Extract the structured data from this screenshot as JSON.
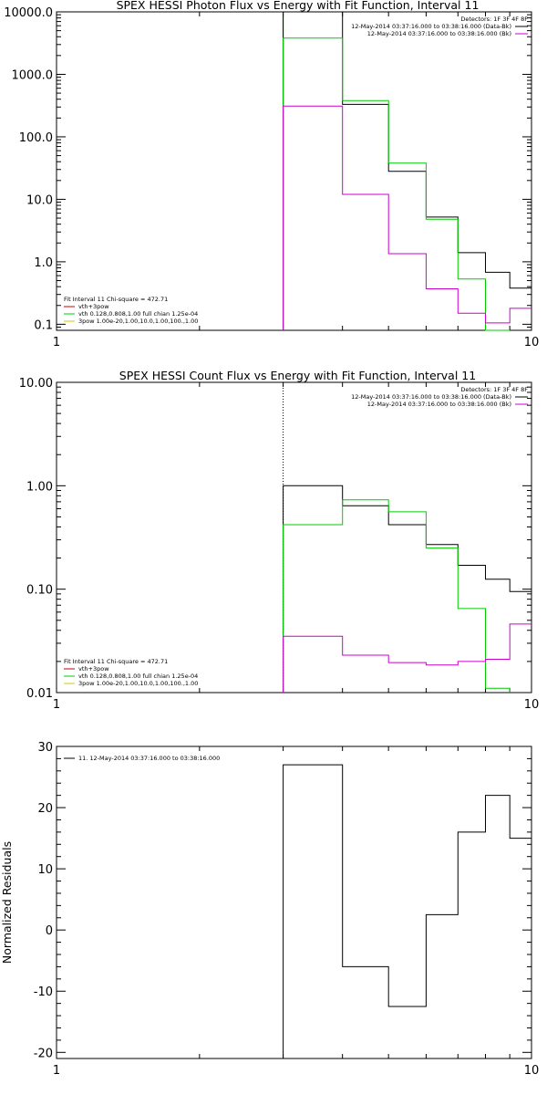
{
  "chart_data": [
    {
      "type": "line",
      "title": "SPEX HESSI Photon Flux vs Energy with Fit Function, Interval 11",
      "xscale": "log",
      "yscale": "log",
      "xlim": [
        1,
        10
      ],
      "ylim": [
        0.08,
        10000
      ],
      "xticks": [
        {
          "v": 1,
          "label": "1"
        },
        {
          "v": 10,
          "label": "10"
        }
      ],
      "yticks": [
        {
          "v": 10000,
          "label": "10000.0"
        },
        {
          "v": 1000,
          "label": "1000.0"
        },
        {
          "v": 100,
          "label": "100.0"
        },
        {
          "v": 10,
          "label": "10.0"
        },
        {
          "v": 1,
          "label": "1.0"
        },
        {
          "v": 0.1,
          "label": "0.1"
        }
      ],
      "vline": {
        "x": 3.0,
        "style": "solid",
        "color": "#00cc00"
      },
      "series": [
        {
          "name": "12-May-2014 03:37:16.000 to 03:38:16.000 (Data-Bk)",
          "color": "#000000",
          "edges": [
            3.0,
            4.0,
            5.0,
            6.0,
            7.0,
            8.0,
            9.0,
            10.0
          ],
          "values": [
            10000,
            330,
            28,
            5.2,
            1.4,
            0.68,
            0.38
          ]
        },
        {
          "name": "vth",
          "color": "#00cc00",
          "edges": [
            3.0,
            4.0,
            5.0,
            6.0,
            7.0,
            8.0,
            9.0
          ],
          "values": [
            3800,
            380,
            38,
            4.8,
            0.53,
            0.08
          ]
        },
        {
          "name": "12-May-2014 03:37:16.000 to 03:38:16.000 (Bk)",
          "color": "#cc00cc",
          "edges": [
            3.0,
            4.0,
            5.0,
            6.0,
            7.0,
            8.0,
            9.0,
            10.0
          ],
          "values": [
            310,
            12,
            1.35,
            0.37,
            0.15,
            0.105,
            0.18
          ]
        }
      ],
      "legend_top": {
        "header": "Detectors: 1F 3F 4F 8F",
        "entries": [
          {
            "text": "12-May-2014 03:37:16.000 to 03:38:16.000 (Data-Bk)",
            "color": "#000000"
          },
          {
            "text": "12-May-2014 03:37:16.000 to 03:38:16.000 (Bk)",
            "color": "#cc00cc"
          }
        ]
      },
      "legend_bottom": {
        "header": "Fit Interval 11    Chi-square = 472.71",
        "entries": [
          {
            "text": "vth+3pow",
            "color": "#cc0000"
          },
          {
            "text": "vth 0.128,0.808,1.00  full chian 1.25e-04",
            "color": "#00cc00"
          },
          {
            "text": "3pow 1.00e-20,1.00,10.0,1.00,100.,1.00",
            "color": "#cccc00"
          }
        ]
      }
    },
    {
      "type": "line",
      "title": "SPEX HESSI Count Flux vs Energy with Fit Function, Interval 11",
      "xscale": "log",
      "yscale": "log",
      "xlim": [
        1,
        10
      ],
      "ylim": [
        0.01,
        10
      ],
      "xticks": [
        {
          "v": 1,
          "label": "1"
        },
        {
          "v": 10,
          "label": "10"
        }
      ],
      "yticks": [
        {
          "v": 10,
          "label": "10.00"
        },
        {
          "v": 1,
          "label": "1.00"
        },
        {
          "v": 0.1,
          "label": "0.10"
        },
        {
          "v": 0.01,
          "label": "0.01"
        }
      ],
      "vline": {
        "x": 3.0,
        "style": "dotted",
        "color": "#000000"
      },
      "series": [
        {
          "name": "12-May-2014 03:37:16.000 to 03:38:16.000 (Data-Bk)",
          "color": "#000000",
          "edges": [
            3.0,
            4.0,
            5.0,
            6.0,
            7.0,
            8.0,
            9.0,
            10.0
          ],
          "values": [
            1.0,
            0.64,
            0.42,
            0.27,
            0.17,
            0.125,
            0.095
          ]
        },
        {
          "name": "vth",
          "color": "#00cc00",
          "edges": [
            3.0,
            4.0,
            5.0,
            6.0,
            7.0,
            8.0,
            9.0
          ],
          "values": [
            0.42,
            0.73,
            0.56,
            0.25,
            0.065,
            0.011
          ]
        },
        {
          "name": "12-May-2014 03:37:16.000 to 03:38:16.000 (Bk)",
          "color": "#cc00cc",
          "edges": [
            3.0,
            4.0,
            5.0,
            6.0,
            7.0,
            8.0,
            9.0,
            10.0
          ],
          "values": [
            0.035,
            0.023,
            0.0195,
            0.0185,
            0.02,
            0.021,
            0.046
          ]
        }
      ],
      "legend_top": {
        "header": "Detectors: 1F 3F 4F 8F",
        "entries": [
          {
            "text": "12-May-2014 03:37:16.000 to 03:38:16.000 (Data-Bk)",
            "color": "#000000"
          },
          {
            "text": "12-May-2014 03:37:16.000 to 03:38:16.000 (Bk)",
            "color": "#cc00cc"
          }
        ]
      },
      "legend_bottom": {
        "header": "Fit Interval 11    Chi-square = 472.71",
        "entries": [
          {
            "text": "vth+3pow",
            "color": "#cc0000"
          },
          {
            "text": "vth 0.128,0.808,1.00  full chian 1.25e-04",
            "color": "#00cc00"
          },
          {
            "text": "3pow 1.00e-20,1.00,10.0,1.00,100.,1.00",
            "color": "#cccc00"
          }
        ]
      }
    },
    {
      "type": "line",
      "title": "",
      "ylabel": "Normalized Residuals",
      "xscale": "log",
      "yscale": "linear",
      "xlim": [
        1,
        10
      ],
      "ylim": [
        -21,
        30
      ],
      "xticks": [
        {
          "v": 1,
          "label": "1"
        },
        {
          "v": 10,
          "label": "10"
        }
      ],
      "yticks": [
        {
          "v": 30,
          "label": "30"
        },
        {
          "v": 20,
          "label": "20"
        },
        {
          "v": 10,
          "label": "10"
        },
        {
          "v": 0,
          "label": "0"
        },
        {
          "v": -10,
          "label": "-10"
        },
        {
          "v": -20,
          "label": "-20"
        }
      ],
      "series": [
        {
          "name": "11. 12-May-2014 03:37:16.000 to 03:38:16.000",
          "color": "#000000",
          "edges": [
            3.0,
            4.0,
            5.0,
            6.0,
            7.0,
            8.0,
            9.0,
            10.0
          ],
          "values": [
            27,
            -6,
            -12.5,
            2.5,
            16,
            22,
            15
          ],
          "drop_left_to": -21
        }
      ],
      "legend_top": {
        "header": "",
        "entries": [
          {
            "text": "11. 12-May-2014 03:37:16.000 to 03:38:16.000",
            "color": "#000000"
          }
        ]
      }
    }
  ]
}
